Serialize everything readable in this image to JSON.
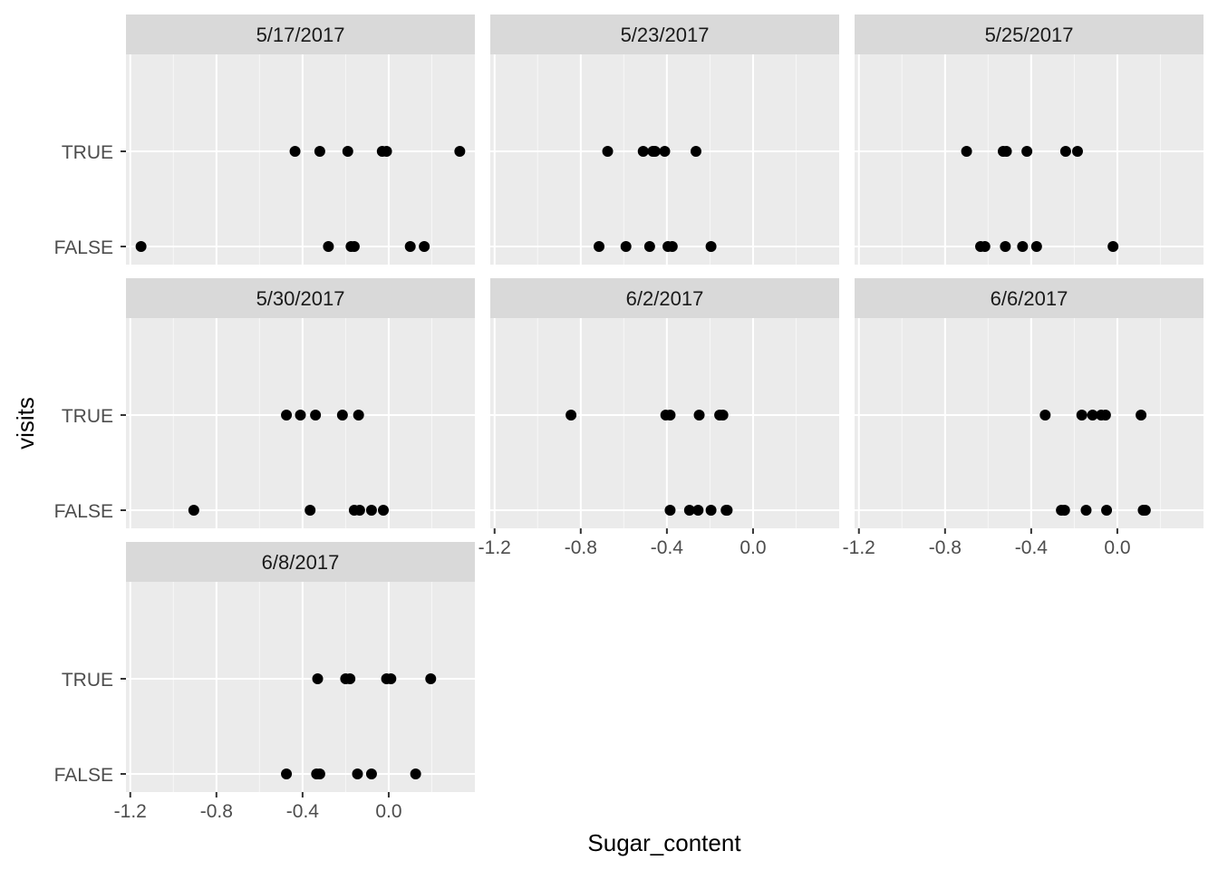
{
  "chart_data": {
    "type": "scatter",
    "xlabel": "Sugar_content",
    "ylabel": "visits",
    "xlim": [
      -1.22,
      0.4
    ],
    "x_ticks": [
      -1.2,
      -0.8,
      -0.4,
      0.0
    ],
    "x_tick_labels": [
      "-1.2",
      "-0.8",
      "-0.4",
      "0.0"
    ],
    "y_categories": [
      "FALSE",
      "TRUE"
    ],
    "grid": true,
    "facet_layout": {
      "ncol": 3,
      "nrow": 3
    },
    "facets": [
      {
        "label": "5/17/2017",
        "points": {
          "TRUE": [
            -0.435,
            -0.32,
            -0.19,
            -0.03,
            -0.01,
            0.33
          ],
          "FALSE": [
            -1.15,
            -0.28,
            -0.175,
            -0.16,
            0.1,
            0.165
          ]
        }
      },
      {
        "label": "5/23/2017",
        "points": {
          "TRUE": [
            -0.675,
            -0.51,
            -0.465,
            -0.455,
            -0.41,
            -0.265
          ],
          "FALSE": [
            -0.715,
            -0.59,
            -0.48,
            -0.395,
            -0.375,
            -0.195
          ]
        }
      },
      {
        "label": "5/25/2017",
        "points": {
          "TRUE": [
            -0.7,
            -0.53,
            -0.515,
            -0.42,
            -0.24,
            -0.185
          ],
          "FALSE": [
            -0.635,
            -0.615,
            -0.52,
            -0.44,
            -0.375,
            -0.02
          ]
        }
      },
      {
        "label": "5/30/2017",
        "points": {
          "TRUE": [
            -0.475,
            -0.41,
            -0.34,
            -0.215,
            -0.14
          ],
          "FALSE": [
            -0.905,
            -0.365,
            -0.16,
            -0.135,
            -0.08,
            -0.025
          ]
        }
      },
      {
        "label": "6/2/2017",
        "points": {
          "TRUE": [
            -0.845,
            -0.405,
            -0.385,
            -0.25,
            -0.155,
            -0.14
          ],
          "FALSE": [
            -0.385,
            -0.295,
            -0.255,
            -0.195,
            -0.125,
            -0.12
          ]
        }
      },
      {
        "label": "6/6/2017",
        "points": {
          "TRUE": [
            -0.335,
            -0.165,
            -0.115,
            -0.075,
            -0.055,
            0.11
          ],
          "FALSE": [
            -0.26,
            -0.245,
            -0.145,
            -0.05,
            0.12,
            0.13
          ]
        }
      },
      {
        "label": "6/8/2017",
        "points": {
          "TRUE": [
            -0.33,
            -0.2,
            -0.18,
            -0.01,
            0.01,
            0.195
          ],
          "FALSE": [
            -0.475,
            -0.335,
            -0.32,
            -0.145,
            -0.08,
            0.125
          ]
        }
      }
    ]
  }
}
